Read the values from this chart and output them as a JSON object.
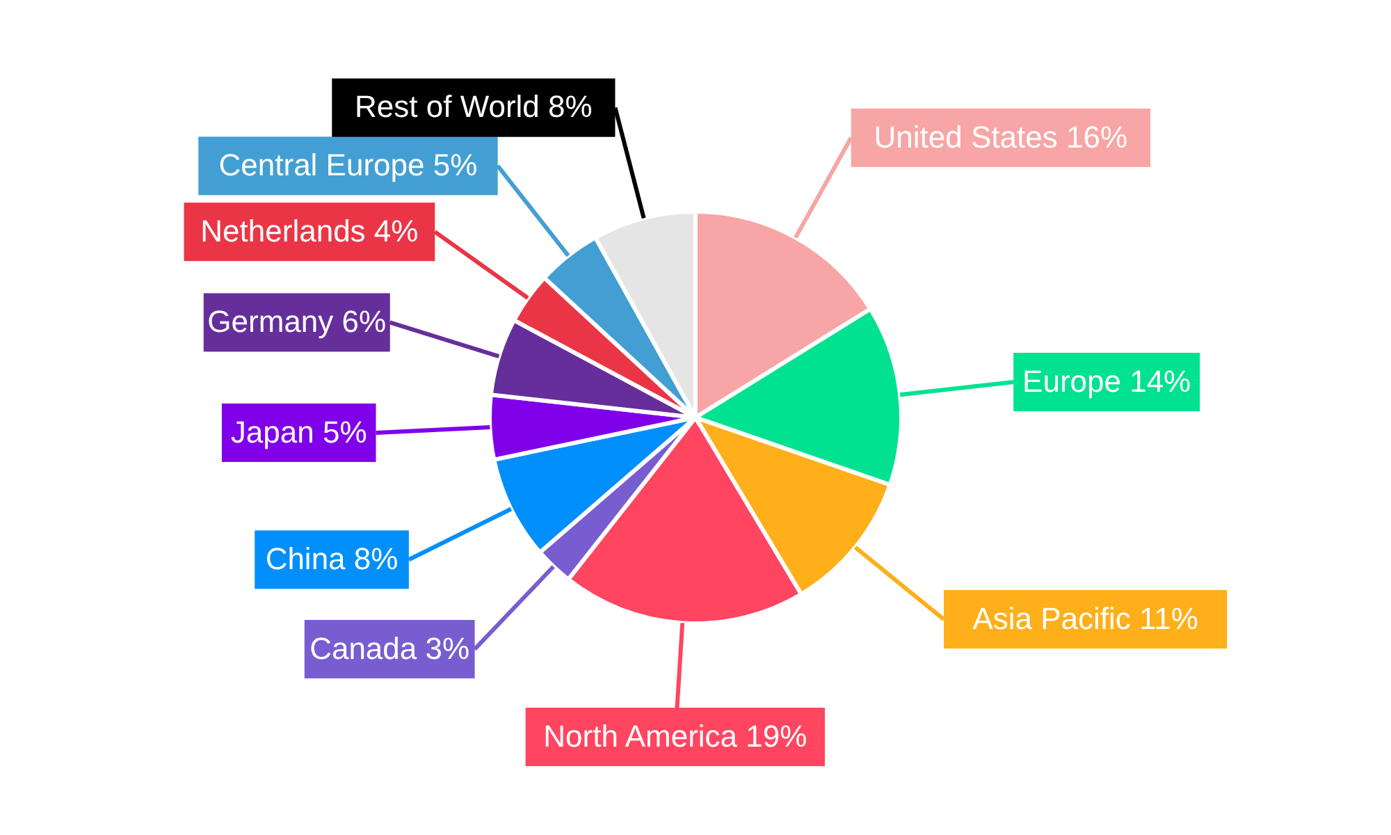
{
  "chart_data": {
    "type": "pie",
    "categories": [
      "United States",
      "Europe",
      "Asia Pacific",
      "North America",
      "Canada",
      "China",
      "Japan",
      "Germany",
      "Netherlands",
      "Central Europe",
      "Rest of World"
    ],
    "values": [
      16,
      14,
      11,
      19,
      3,
      8,
      5,
      6,
      4,
      5,
      8
    ],
    "value_labels": [
      "16%",
      "14%",
      "11%",
      "19%",
      "3%",
      "8%",
      "5%",
      "6%",
      "4%",
      "5%",
      "8%"
    ],
    "colors": [
      "#f8a5a5",
      "#00e290",
      "#ffaf1a",
      "#ff4560",
      "#775dd0",
      "#008ffb",
      "#8000ea",
      "#662e9b",
      "#ea3546",
      "#439fd3",
      "#e5e5e5"
    ],
    "legend": false
  }
}
